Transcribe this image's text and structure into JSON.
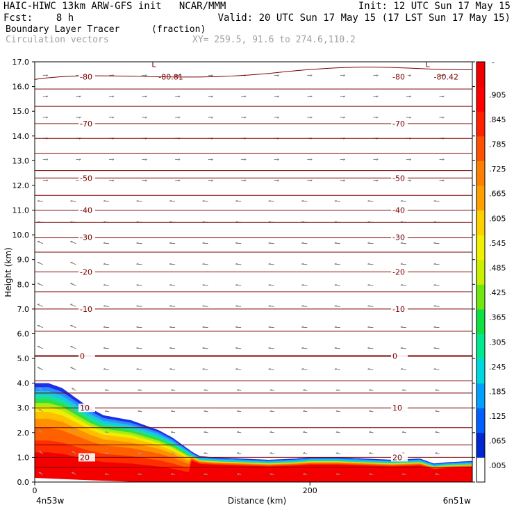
{
  "header": {
    "line1_left": "HAIC-HIWC 13km ARW-GFS init   NCAR/MMM",
    "line1_right": "Init: 12 UTC Sun 17 May 15",
    "line2_left": "Fcst:    8 h",
    "line2_right": "Valid: 20 UTC Sun 17 May 15 (17 LST Sun 17 May 15)",
    "field_name": "Boundary Layer Tracer",
    "field_units": "(fraction)",
    "overlay_name": "Circulation vectors",
    "cross_section": "XY= 259.5, 91.6 to 274.6,110.2"
  },
  "chart_data": {
    "type": "heatmap",
    "xlabel": "Distance (km)",
    "ylabel": "Height (km)",
    "xlim": [
      0,
      318
    ],
    "ylim": [
      0,
      17
    ],
    "xtick_labels": [
      "0",
      "200"
    ],
    "x_end_labels": [
      "4n53w",
      "6n51w"
    ],
    "ytick_labels": [
      "0.0",
      "1.0",
      "2.0",
      "3.0",
      "4.0",
      "5.0",
      "6.0",
      "7.0",
      "8.0",
      "9.0",
      "10.0",
      "11.0",
      "12.0",
      "13.0",
      "14.0",
      "15.0",
      "16.0",
      "17.0"
    ],
    "colorbar_labels": [
      ".005",
      ".065",
      ".125",
      ".185",
      ".245",
      ".305",
      ".365",
      ".425",
      ".485",
      ".545",
      ".605",
      ".665",
      ".725",
      ".785",
      ".845",
      ".905"
    ],
    "colorbar_top_label": "-",
    "tracer_top_profile": {
      "distance_km": [
        0,
        10,
        20,
        30,
        40,
        50,
        60,
        70,
        80,
        90,
        100,
        110,
        115,
        120,
        130,
        150,
        170,
        190,
        200,
        220,
        240,
        260,
        280,
        290,
        300,
        318
      ],
      "height_km": [
        4.0,
        4.0,
        3.8,
        3.4,
        3.0,
        2.7,
        2.6,
        2.5,
        2.3,
        2.1,
        1.8,
        1.4,
        1.2,
        1.05,
        1.0,
        0.95,
        0.9,
        0.95,
        1.0,
        1.0,
        0.95,
        0.9,
        0.95,
        0.75,
        0.8,
        0.85
      ]
    },
    "temperature_contours": [
      {
        "label": "0",
        "height_km": 5.1
      },
      {
        "label": "-10",
        "height_km": 7.0
      },
      {
        "label": "-20",
        "height_km": 8.5
      },
      {
        "label": "-30",
        "height_km": 9.9
      },
      {
        "label": "-40",
        "height_km": 11.0
      },
      {
        "label": "-50",
        "height_km": 12.3
      },
      {
        "label": "-70",
        "height_km": 14.5
      },
      {
        "label": "-80",
        "height_km": 16.4
      },
      {
        "label": "10",
        "height_km": 3.0
      },
      {
        "label": "20",
        "height_km": 1.0
      }
    ],
    "annotations": [
      {
        "text": "-80.81",
        "x_km": 90,
        "height_km": 16.4
      },
      {
        "text": "-80.42",
        "x_km": 290,
        "height_km": 16.4
      },
      {
        "text": "L",
        "x_km": 85,
        "height_km": 16.9
      },
      {
        "text": "L",
        "x_km": 284,
        "height_km": 16.9
      }
    ]
  }
}
